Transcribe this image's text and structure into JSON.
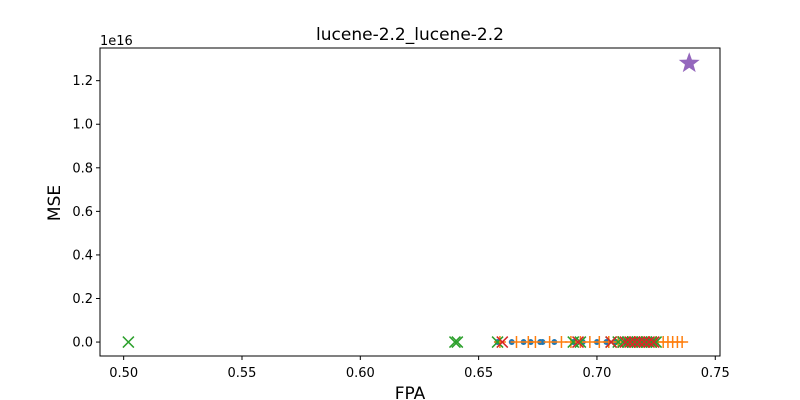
{
  "chart_data": {
    "type": "scatter",
    "title": "lucene-2.2_lucene-2.2",
    "xlabel": "FPA",
    "ylabel": "MSE",
    "y_offset_label": "1e16",
    "xlim": [
      0.49,
      0.752
    ],
    "ylim": [
      -640000000000000.0,
      1.35e+16
    ],
    "x_ticks": [
      0.5,
      0.55,
      0.6,
      0.65,
      0.7,
      0.75
    ],
    "x_tick_labels": [
      "0.50",
      "0.55",
      "0.60",
      "0.65",
      "0.70",
      "0.75"
    ],
    "y_ticks": [
      0,
      2000000000000000.0,
      4000000000000000.0,
      6000000000000000.0,
      8000000000000000.0,
      1e+16,
      1.2e+16
    ],
    "y_tick_labels": [
      "0.0",
      "0.2",
      "0.4",
      "0.6",
      "0.8",
      "1.0",
      "1.2"
    ],
    "grid": false,
    "series": [
      {
        "marker": "circle",
        "color": "#1f77b4",
        "points": [
          [
            0.658,
            0
          ],
          [
            0.664,
            0
          ],
          [
            0.669,
            0
          ],
          [
            0.672,
            0
          ],
          [
            0.676,
            0
          ],
          [
            0.677,
            0
          ],
          [
            0.682,
            0
          ],
          [
            0.69,
            0
          ],
          [
            0.694,
            0
          ],
          [
            0.7,
            0
          ],
          [
            0.704,
            0
          ],
          [
            0.708,
            0
          ],
          [
            0.712,
            0
          ],
          [
            0.716,
            0
          ],
          [
            0.719,
            0
          ],
          [
            0.722,
            0
          ],
          [
            0.725,
            0
          ]
        ]
      },
      {
        "marker": "plus",
        "color": "#ff7f0e",
        "points": [
          [
            0.659,
            0
          ],
          [
            0.666,
            0
          ],
          [
            0.671,
            0
          ],
          [
            0.674,
            0
          ],
          [
            0.68,
            0
          ],
          [
            0.685,
            0
          ],
          [
            0.689,
            0
          ],
          [
            0.693,
            0
          ],
          [
            0.697,
            0
          ],
          [
            0.701,
            0
          ],
          [
            0.705,
            0
          ],
          [
            0.709,
            0
          ],
          [
            0.713,
            0
          ],
          [
            0.716,
            0
          ],
          [
            0.719,
            0
          ],
          [
            0.722,
            0
          ],
          [
            0.725,
            0
          ],
          [
            0.728,
            0
          ],
          [
            0.73,
            0
          ],
          [
            0.732,
            0
          ],
          [
            0.734,
            0
          ],
          [
            0.736,
            0
          ]
        ]
      },
      {
        "marker": "x",
        "color": "#2ca02c",
        "points": [
          [
            0.502,
            0
          ],
          [
            0.64,
            0
          ],
          [
            0.641,
            0
          ],
          [
            0.658,
            0
          ],
          [
            0.69,
            0
          ],
          [
            0.693,
            0
          ],
          [
            0.706,
            0
          ],
          [
            0.709,
            0
          ],
          [
            0.711,
            0
          ],
          [
            0.713,
            0
          ],
          [
            0.715,
            0
          ],
          [
            0.717,
            0
          ],
          [
            0.719,
            0
          ],
          [
            0.721,
            0
          ],
          [
            0.723,
            0
          ],
          [
            0.725,
            0
          ]
        ]
      },
      {
        "marker": "x",
        "color": "#d62728",
        "points": [
          [
            0.66,
            0
          ],
          [
            0.692,
            0
          ],
          [
            0.706,
            0
          ],
          [
            0.712,
            0
          ],
          [
            0.714,
            0
          ],
          [
            0.716,
            0
          ],
          [
            0.718,
            0
          ],
          [
            0.72,
            0
          ],
          [
            0.722,
            0
          ],
          [
            0.724,
            0
          ]
        ]
      },
      {
        "marker": "star",
        "color": "#9467bd",
        "points": [
          [
            0.739,
            1.28e+16
          ]
        ]
      }
    ]
  }
}
